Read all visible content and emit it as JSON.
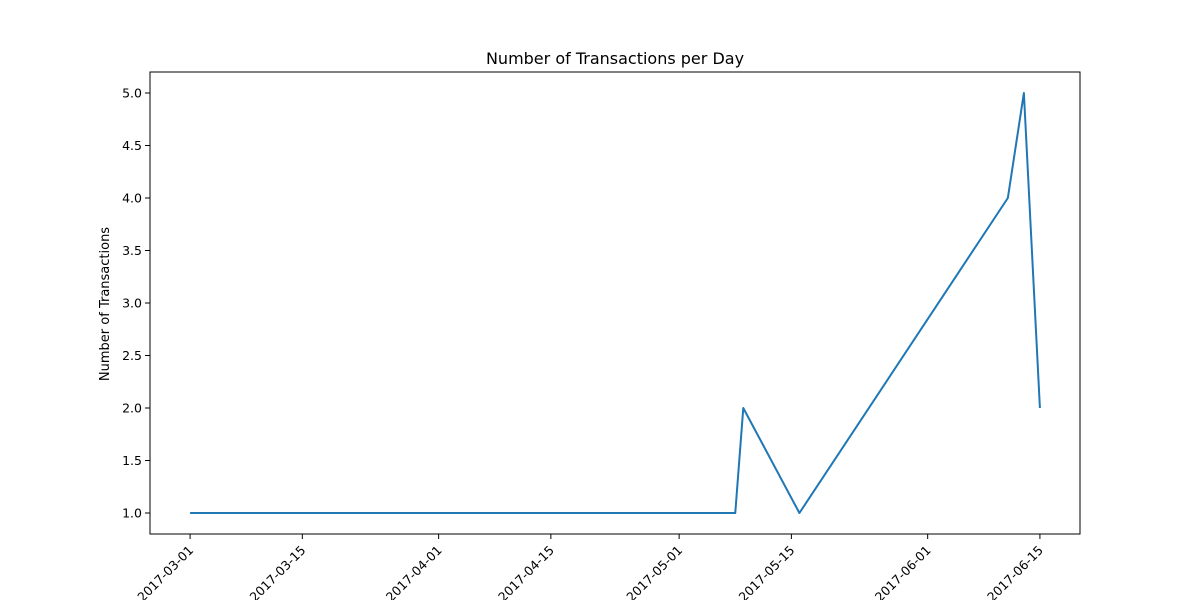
{
  "chart_data": {
    "type": "line",
    "title": "Number of Transactions per Day",
    "xlabel": "",
    "ylabel": "Number of Transactions",
    "x": [
      "2017-03-01",
      "2017-05-08",
      "2017-05-09",
      "2017-05-16",
      "2017-06-11",
      "2017-06-13",
      "2017-06-15"
    ],
    "series": [
      {
        "values": [
          1,
          1,
          2,
          1,
          4,
          5,
          2
        ],
        "color": "#1f77b4"
      }
    ],
    "x_ticks": [
      "2017-03-01",
      "2017-03-15",
      "2017-04-01",
      "2017-04-15",
      "2017-05-01",
      "2017-05-15",
      "2017-06-01",
      "2017-06-15"
    ],
    "y_ticks": [
      "1.0",
      "1.5",
      "2.0",
      "2.5",
      "3.0",
      "3.5",
      "4.0",
      "4.5",
      "5.0"
    ],
    "xlim": [
      "2017-02-24",
      "2017-06-20"
    ],
    "ylim": [
      0.8,
      5.2
    ],
    "grid": false,
    "legend": "none"
  }
}
